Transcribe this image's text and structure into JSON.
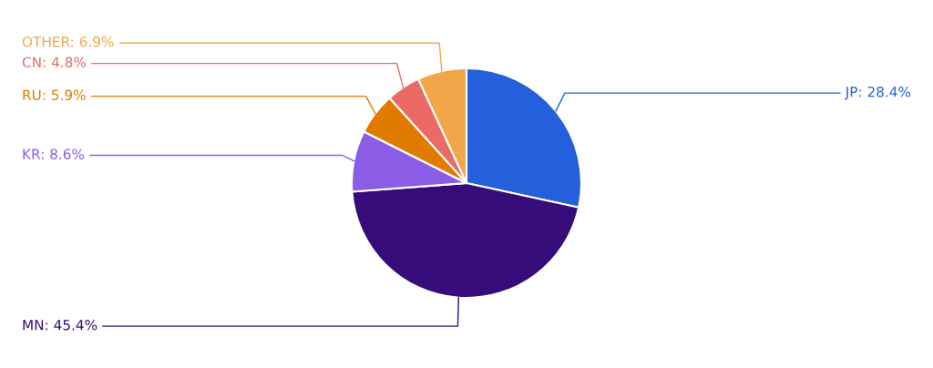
{
  "chart_data": {
    "type": "pie",
    "categories": [
      "JP: 28.4%",
      "MN: 45.4%",
      "KR: 8.6%",
      "RU: 5.9%",
      "CN: 4.8%",
      "OTHER: 6.9%"
    ],
    "values": [
      28.4,
      45.4,
      8.6,
      5.9,
      4.8,
      6.9
    ],
    "colors": [
      "#2560dc",
      "#350c7a",
      "#8b5ce6",
      "#e07b00",
      "#ec6a66",
      "#f2a64a"
    ],
    "legend": false
  }
}
